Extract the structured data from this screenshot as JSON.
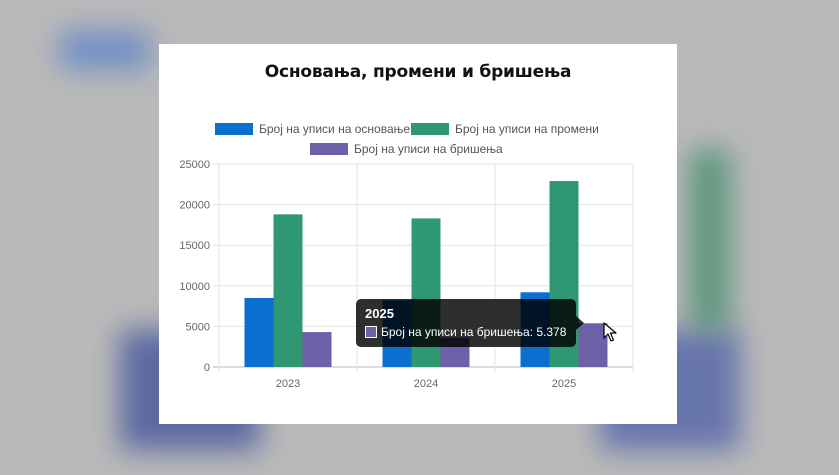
{
  "chart_data": {
    "type": "bar",
    "title": "Оснoвања, промени и бришења",
    "categories": [
      "2023",
      "2024",
      "2025"
    ],
    "series": [
      {
        "name": "Број на уписи на основање",
        "values": [
          8500,
          8200,
          9200
        ],
        "color": "#0a6fce"
      },
      {
        "name": "Број на уписи на промени",
        "values": [
          18800,
          18300,
          22900
        ],
        "color": "#2f9873"
      },
      {
        "name": "Број на уписи на бришења",
        "values": [
          4300,
          3600,
          5378
        ],
        "color": "#6d5fa8"
      }
    ],
    "y_ticks": [
      "0",
      "5000",
      "10000",
      "15000",
      "20000",
      "25000"
    ],
    "ylim": [
      0,
      25000
    ],
    "grid": true,
    "legend_position": "top"
  },
  "tooltip": {
    "title": "2025",
    "text": "Број на уписи на бришења: 5.378",
    "swatch_color": "#6d5fa8"
  },
  "icons": {
    "cursor": "mouse-pointer-icon"
  }
}
